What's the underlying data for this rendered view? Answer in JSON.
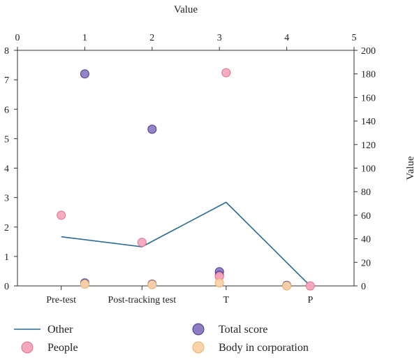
{
  "chart_data": {
    "type": "line",
    "title": "",
    "top_axis": {
      "label": "Value",
      "ticks": [
        "0",
        "1",
        "2",
        "3",
        "4",
        "5"
      ],
      "range": [
        0,
        5
      ]
    },
    "left_axis": {
      "label": "",
      "ticks": [
        "0",
        "1",
        "2",
        "3",
        "4",
        "5",
        "6",
        "7",
        "8"
      ],
      "range": [
        0,
        8
      ]
    },
    "right_axis": {
      "label": "Value",
      "ticks": [
        "0",
        "20",
        "40",
        "60",
        "80",
        "100",
        "120",
        "140",
        "160",
        "180",
        "200"
      ],
      "range": [
        0,
        200
      ]
    },
    "categories": [
      "Pre-test",
      "Post-tracking test",
      "T",
      "P"
    ],
    "series": [
      {
        "name": "Other",
        "kind": "line",
        "color": "#2a6a94",
        "axis": "left",
        "points": [
          {
            "x": 0.65,
            "y": 1.67
          },
          {
            "x": 1.85,
            "y": 1.33
          },
          {
            "x": 3.1,
            "y": 2.84
          },
          {
            "x": 4.35,
            "y": 0.0
          }
        ]
      },
      {
        "name": "Total score",
        "kind": "scatter",
        "color": "#8e7cc3",
        "stroke": "#4a3a8a",
        "axis": "right",
        "points": [
          {
            "x": 1.0,
            "y": 180
          },
          {
            "x": 2.0,
            "y": 133
          },
          {
            "x": 3.0,
            "y": 12
          },
          {
            "x": 3.0,
            "y": 9
          },
          {
            "x": 1.0,
            "y": 2.5
          },
          {
            "x": 2.0,
            "y": 1.5
          },
          {
            "x": 4.0,
            "y": 0.5
          }
        ]
      },
      {
        "name": "People",
        "kind": "scatter",
        "color": "#f4a6bd",
        "stroke": "#e0708f",
        "axis": "right",
        "points": [
          {
            "x": 0.65,
            "y": 60
          },
          {
            "x": 1.85,
            "y": 37
          },
          {
            "x": 3.1,
            "y": 181
          },
          {
            "x": 3.0,
            "y": 8
          },
          {
            "x": 4.35,
            "y": 0
          }
        ]
      },
      {
        "name": "Body in corporation",
        "kind": "scatter",
        "color": "#fad3a8",
        "stroke": "#eab070",
        "axis": "right",
        "points": [
          {
            "x": 1.0,
            "y": 1.5
          },
          {
            "x": 2.0,
            "y": 1.0
          },
          {
            "x": 3.0,
            "y": 2.5
          },
          {
            "x": 4.0,
            "y": 0
          }
        ]
      }
    ],
    "legend": {
      "placement": "bottom",
      "items": [
        {
          "label": "Other",
          "marker": "line",
          "color": "#2a6a94"
        },
        {
          "label": "Total score",
          "marker": "circle",
          "color": "#8e7cc3",
          "stroke": "#4a3a8a"
        },
        {
          "label": "People",
          "marker": "circle",
          "color": "#f4a6bd",
          "stroke": "#e0708f"
        },
        {
          "label": "Body in corporation",
          "marker": "circle",
          "color": "#fad3a8",
          "stroke": "#eab070"
        }
      ]
    },
    "grid": false
  }
}
